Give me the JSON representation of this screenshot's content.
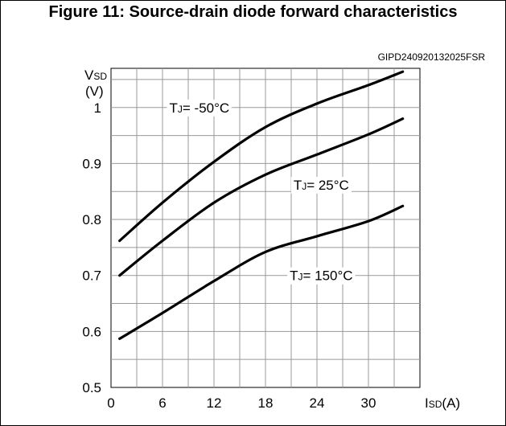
{
  "chart_data": {
    "type": "line",
    "title": "Figure 11: Source-drain diode forward characteristics",
    "code": "GIPD240920132025FSR",
    "ylabel_main": "V",
    "ylabel_sub": "SD",
    "ylabel_unit": "(V)",
    "xlabel_main": "I",
    "xlabel_sub": "SD",
    "xlabel_unit": "(A)",
    "xlim": [
      0,
      36
    ],
    "ylim": [
      0.5,
      1.07
    ],
    "x_ticks": [
      0,
      6,
      12,
      18,
      24,
      30
    ],
    "x_tick_labels": [
      "0",
      "6",
      "12",
      "18",
      "24",
      "30"
    ],
    "y_ticks": [
      0.5,
      0.6,
      0.7,
      0.8,
      0.9,
      1.0
    ],
    "y_tick_labels": [
      "0.5",
      "0.6",
      "0.7",
      "0.8",
      "0.9",
      "1"
    ],
    "grid": true,
    "series": [
      {
        "name": "TJ= -50°C",
        "label_main": "T",
        "label_sub": "J",
        "label_rest": "= -50°C",
        "label_at": [
          10.3,
          1.0
        ],
        "x": [
          1,
          6,
          12,
          18,
          24,
          30,
          34
        ],
        "y": [
          0.762,
          0.83,
          0.903,
          0.965,
          1.007,
          1.04,
          1.064
        ]
      },
      {
        "name": "TJ= 25°C",
        "label_main": "T",
        "label_sub": "J",
        "label_rest": "= 25°C",
        "label_at": [
          24.5,
          0.862
        ],
        "x": [
          1,
          6,
          12,
          18,
          24,
          30,
          34
        ],
        "y": [
          0.7,
          0.762,
          0.83,
          0.88,
          0.916,
          0.952,
          0.98
        ]
      },
      {
        "name": "TJ= 150°C",
        "label_main": "T",
        "label_sub": "J",
        "label_rest": "= 150°C",
        "label_at": [
          24.5,
          0.7
        ],
        "x": [
          1,
          6,
          12,
          18,
          24,
          30,
          34
        ],
        "y": [
          0.587,
          0.633,
          0.69,
          0.742,
          0.77,
          0.797,
          0.824
        ]
      }
    ]
  }
}
